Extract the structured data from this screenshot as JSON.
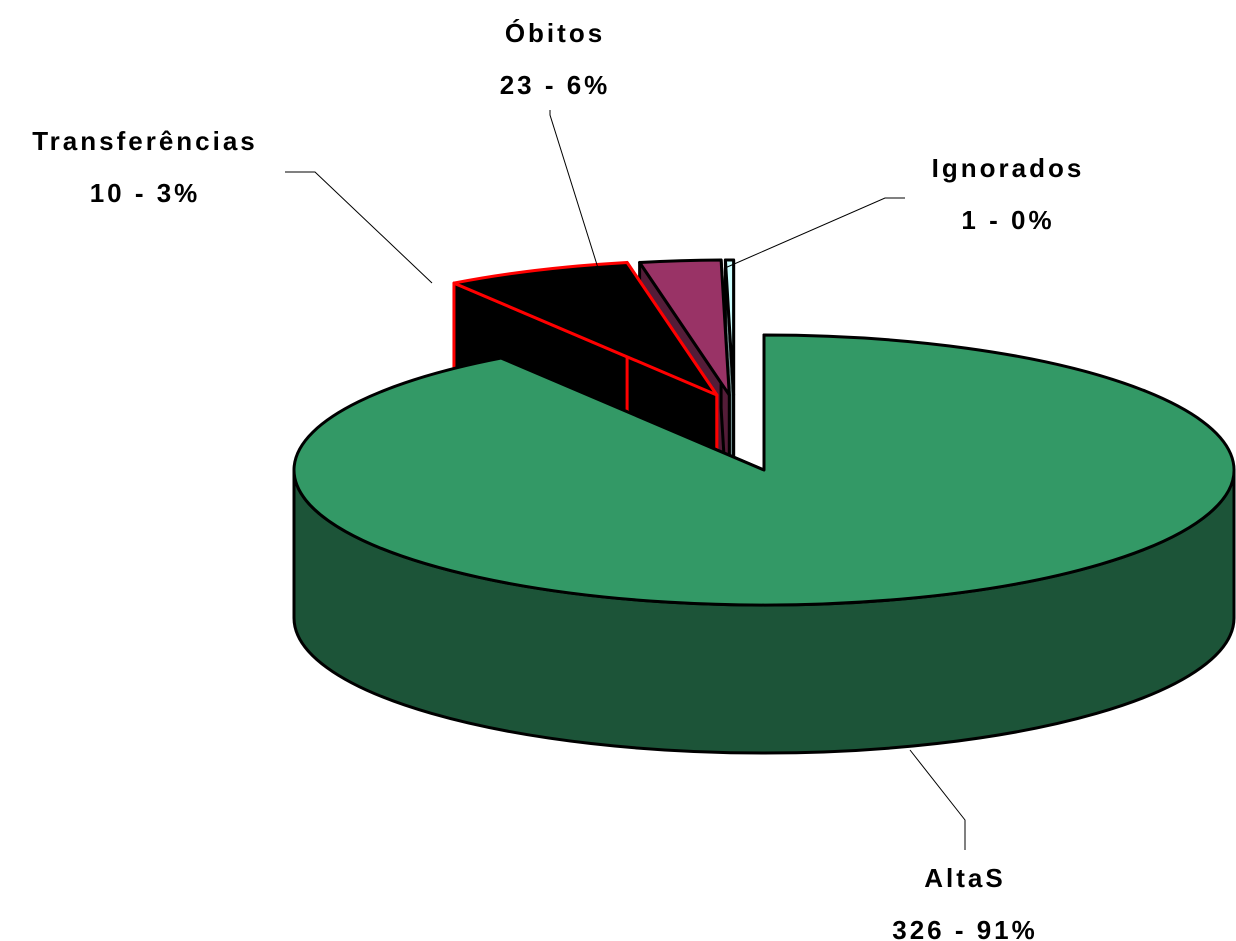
{
  "chart_data": {
    "type": "pie",
    "categories": [
      "AltaS",
      "Óbitos",
      "Transferências",
      "Ignorados"
    ],
    "values": [
      326,
      23,
      10,
      1
    ],
    "value_labels": [
      "326 - 91%",
      "23 - 6%",
      "10 - 3%",
      "1 - 0%"
    ],
    "colors": [
      "#339966",
      "#000000",
      "#993366",
      "#ccffff"
    ],
    "edge_colors": [
      "#000000",
      "#ff0000",
      "#000000",
      "#000000"
    ]
  }
}
